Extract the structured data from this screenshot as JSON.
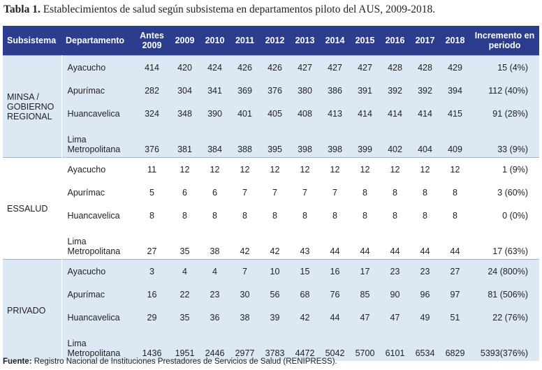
{
  "title": {
    "label": "Tabla 1.",
    "text": "Establecimientos de salud según subsistema en departamentos piloto del AUS, 2009-2018."
  },
  "table": {
    "header": [
      "Subsistema",
      "Departamento",
      "Antes 2009",
      "2009",
      "2010",
      "2011",
      "2012",
      "2013",
      "2014",
      "2015",
      "2016",
      "2017",
      "2018",
      "Incremento en periodo"
    ],
    "groups": [
      {
        "name": "MINSA / GOBIERNO REGIONAL",
        "rows": [
          [
            "Ayacucho",
            414,
            420,
            424,
            426,
            426,
            427,
            427,
            427,
            428,
            428,
            429,
            "15 (4%)"
          ],
          [
            "Apurímac",
            282,
            304,
            341,
            369,
            376,
            380,
            386,
            391,
            392,
            392,
            394,
            "112 (40%)"
          ],
          [
            "Huancavelica",
            324,
            348,
            390,
            401,
            405,
            408,
            413,
            414,
            414,
            414,
            415,
            "91 (28%)"
          ],
          [
            "Lima Metropolitana",
            376,
            381,
            384,
            388,
            395,
            398,
            398,
            399,
            402,
            404,
            409,
            "33 (9%)"
          ]
        ]
      },
      {
        "name": "ESSALUD",
        "rows": [
          [
            "Ayacucho",
            11,
            12,
            12,
            12,
            12,
            12,
            12,
            12,
            12,
            12,
            12,
            "1 (9%)"
          ],
          [
            "Apurímac",
            5,
            6,
            6,
            7,
            7,
            7,
            7,
            8,
            8,
            8,
            8,
            "3 (60%)"
          ],
          [
            "Huancavelica",
            8,
            8,
            8,
            8,
            8,
            8,
            8,
            8,
            8,
            8,
            8,
            "0 (0%)"
          ],
          [
            "Lima Metropolitana",
            27,
            35,
            38,
            42,
            42,
            43,
            44,
            44,
            44,
            44,
            44,
            "17 (63%)"
          ]
        ]
      },
      {
        "name": "PRIVADO",
        "rows": [
          [
            "Ayacucho",
            3,
            4,
            4,
            7,
            10,
            15,
            16,
            17,
            23,
            23,
            27,
            "24 (800%)"
          ],
          [
            "Apurímac",
            16,
            22,
            23,
            30,
            56,
            68,
            76,
            85,
            90,
            96,
            97,
            "81 (506%)"
          ],
          [
            "Huancavelica",
            29,
            35,
            36,
            38,
            39,
            42,
            44,
            47,
            47,
            49,
            51,
            "22 (76%)"
          ],
          [
            "Lima Metropolitana",
            1436,
            1951,
            2446,
            2977,
            3783,
            4472,
            5042,
            5700,
            6101,
            6534,
            6829,
            "5393(376%)"
          ]
        ]
      }
    ]
  },
  "footer": {
    "label": "Fuente:",
    "text": "Registro Nacional de Instituciones Prestadores de Servicios de Salud (RENIPRESS)."
  }
}
